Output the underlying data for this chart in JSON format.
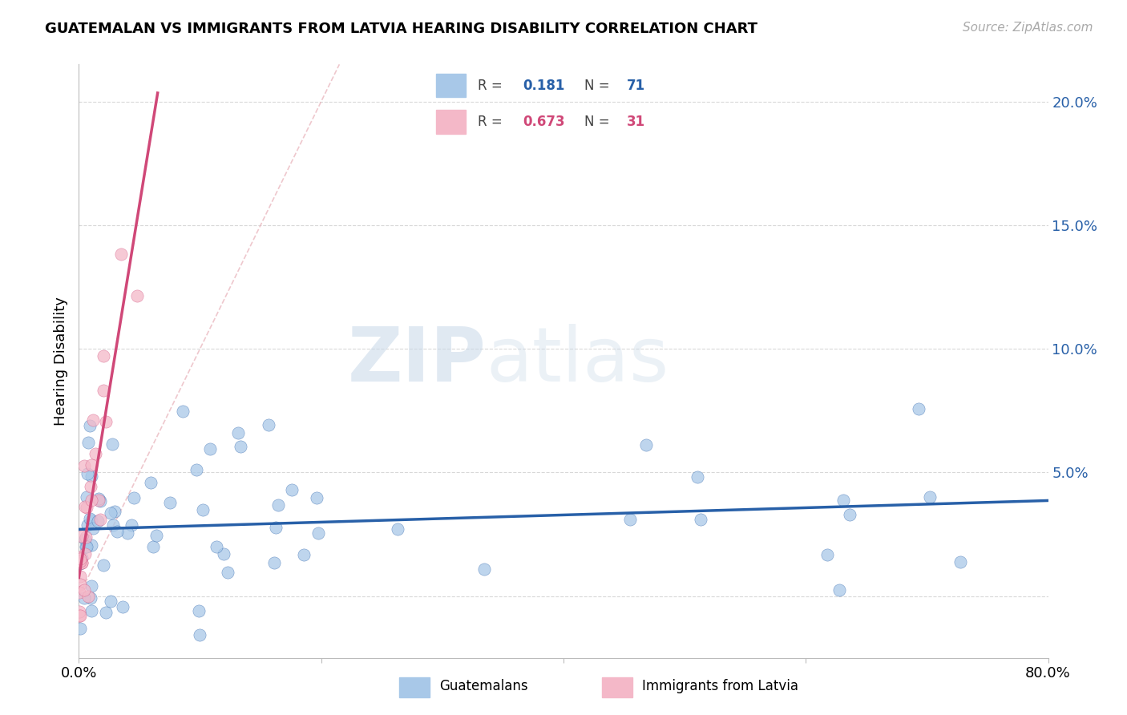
{
  "title": "GUATEMALAN VS IMMIGRANTS FROM LATVIA HEARING DISABILITY CORRELATION CHART",
  "source": "Source: ZipAtlas.com",
  "ylabel": "Hearing Disability",
  "yticks": [
    0.0,
    0.05,
    0.1,
    0.15,
    0.2
  ],
  "ytick_labels": [
    "",
    "5.0%",
    "10.0%",
    "15.0%",
    "20.0%"
  ],
  "xlim": [
    0.0,
    0.8
  ],
  "ylim": [
    -0.025,
    0.215
  ],
  "color_blue": "#a8c8e8",
  "color_pink": "#f4b8c8",
  "color_blue_dark": "#2860a8",
  "color_pink_dark": "#d04878",
  "watermark_zip": "ZIP",
  "watermark_atlas": "atlas"
}
